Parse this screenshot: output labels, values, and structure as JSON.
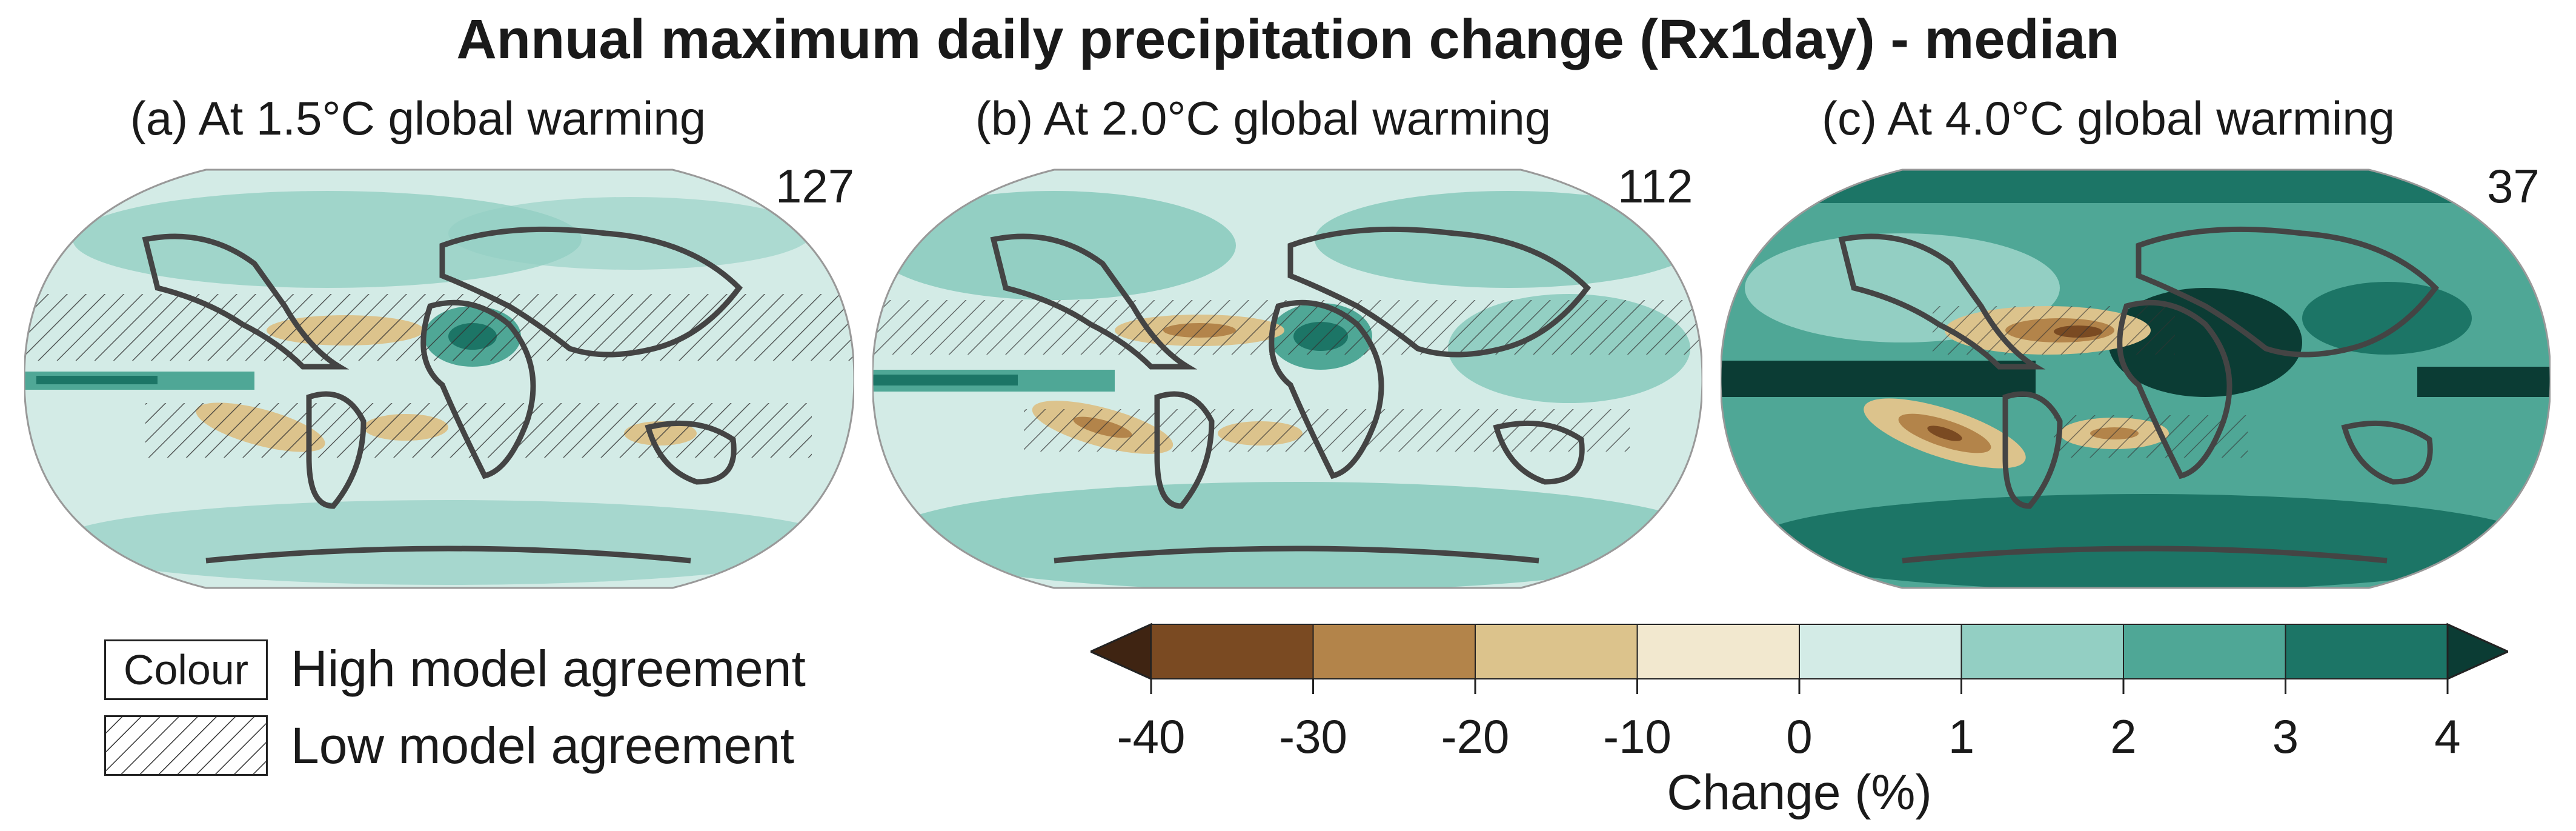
{
  "title": "Annual maximum daily precipitation change (Rx1day) - median",
  "panels": [
    {
      "label": "(a) At 1.5°C global warming",
      "count": "127"
    },
    {
      "label": "(b) At 2.0°C global warming",
      "count": "112"
    },
    {
      "label": "(c) At 4.0°C global warming",
      "count": "37"
    }
  ],
  "legend": {
    "colour_box_text": "Colour",
    "high_agreement": "High model agreement",
    "low_agreement": "Low model agreement"
  },
  "colorbar": {
    "label": "Change (%)",
    "ticks": [
      "-40",
      "-30",
      "-20",
      "-10",
      "0",
      "1",
      "2",
      "3",
      "4"
    ],
    "colors": [
      "#3f2412",
      "#7a4a22",
      "#b3844a",
      "#dcc38c",
      "#f2e8cf",
      "#d3ebe6",
      "#93cfc3",
      "#4fa796",
      "#1c7566",
      "#0b3c34"
    ]
  }
}
